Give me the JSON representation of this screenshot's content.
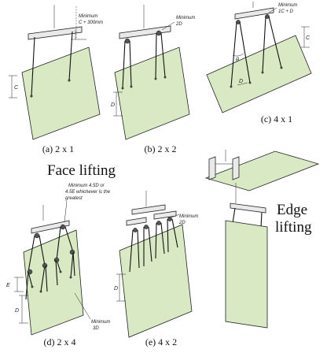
{
  "figures": {
    "a": {
      "caption": "(a) 2 x 1",
      "note_line1": "Minimum",
      "note_line2": "C + 300mm",
      "dim": "C"
    },
    "b": {
      "caption": "(b) 2 x 2",
      "note_line1": "Minimum",
      "note_line2": "2D",
      "dim": "D"
    },
    "c": {
      "caption": "(c) 4 x 1",
      "note_line1": "Minimum",
      "note_line2": "1C + D",
      "dim": "C",
      "angle": "θ",
      "dim_d": "D"
    },
    "d": {
      "caption": "(d) 2 x 4",
      "note_line1": "Minimum 4.5D or",
      "note_line2": "4.5E whichever is the",
      "note_line3": "greatest",
      "dim_e": "E",
      "dim_d": "D",
      "min_line1": "Minimum",
      "min_line2": "3D"
    },
    "e": {
      "caption": "(e) 4 x 2",
      "note_line1": "Minimum",
      "note_line2": "2D",
      "dim": "D"
    }
  },
  "labels": {
    "face_lifting": "Face lifting",
    "edge_lifting_line1": "Edge",
    "edge_lifting_line2": "lifting"
  },
  "colors": {
    "panel": "#d8e9c4",
    "bar": "#e9e9e9",
    "line": "#111111"
  }
}
